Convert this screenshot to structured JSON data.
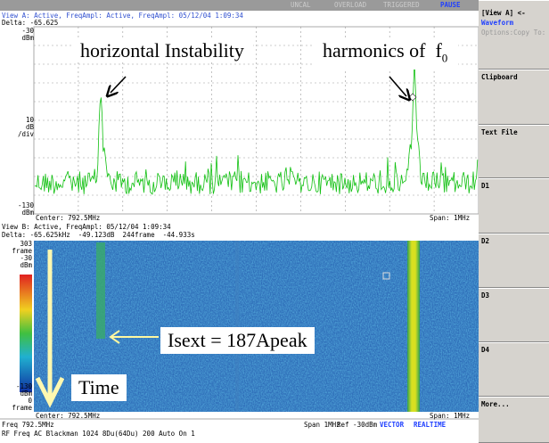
{
  "status_bar": {
    "items": [
      "UNCAL",
      "OVERLOAD",
      "TRIGGERED",
      "PAUSE"
    ]
  },
  "view_a": {
    "header": "View A: Active, FreqAmpl: Active, FreqAmpl: 05/12/04 1:09:34",
    "delta": "Delta: -65.625",
    "y_top": [
      "-30",
      "dBm"
    ],
    "y_mid": [
      "10",
      "dB",
      "/div"
    ],
    "y_bottom": [
      "-130",
      "dBm"
    ],
    "center": "Center: 792.5MHz",
    "span": "Span: 1MHz"
  },
  "annotations": {
    "instability": "horizontal Instability",
    "harmonics": {
      "text": "harmonics of  f",
      "subscript": "0"
    },
    "current": "Isext = 187Apeak",
    "time": "Time"
  },
  "view_b": {
    "header": "View B: Active, FreqAmpl: 05/12/04 1:09:34",
    "delta": "Delta: -65.625kHz  -49.123dB  244frame  -44.933s",
    "y_top": [
      "303",
      "frame",
      "-30",
      "dBm"
    ],
    "y_bottom": [
      "-130",
      "dBm",
      "0",
      "frame"
    ],
    "center": "Center: 792.5MHz",
    "span": "Span: 1MHz"
  },
  "footer": {
    "freq": "Freq 792.5MHz",
    "span": "Span 1MHz",
    "ref": "Ref -30dBm",
    "mode1": "VECTOR",
    "mode2": "REALTIME",
    "line2": "RF Freq AC Blackman 1024 8Du(64Du) 200 Auto On 1"
  },
  "menu": {
    "title": "[View A] <-",
    "subtitle": "Waveform",
    "options": "Options:Copy To:",
    "buttons": [
      "Clipboard",
      "Text File",
      "D1",
      "D2",
      "D3",
      "D4",
      "More..."
    ]
  }
}
